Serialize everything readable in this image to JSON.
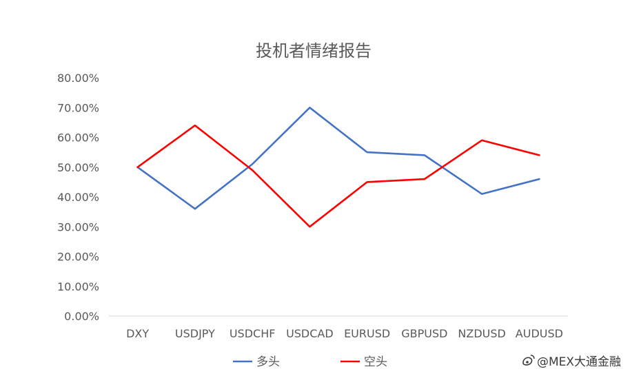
{
  "chart_data": {
    "type": "line",
    "title": "投机者情绪报告",
    "xlabel": "",
    "ylabel": "",
    "ylim": [
      0,
      0.8
    ],
    "yticks": [
      "0.00%",
      "10.00%",
      "20.00%",
      "30.00%",
      "40.00%",
      "50.00%",
      "60.00%",
      "70.00%",
      "80.00%"
    ],
    "grid": false,
    "legend_position": "bottom",
    "categories": [
      "DXY",
      "USDJPY",
      "USDCHF",
      "USDCAD",
      "EURUSD",
      "GBPUSD",
      "NZDUSD",
      "AUDUSD"
    ],
    "series": [
      {
        "name": "多头",
        "color": "#4472c4",
        "values": [
          0.5,
          0.36,
          0.51,
          0.7,
          0.55,
          0.54,
          0.41,
          0.46
        ]
      },
      {
        "name": "空头",
        "color": "#ff0000",
        "values": [
          0.5,
          0.64,
          0.49,
          0.3,
          0.45,
          0.46,
          0.59,
          0.54
        ]
      }
    ]
  },
  "watermark": {
    "icon": "weibo-icon",
    "text": "@MEX大通金融"
  }
}
